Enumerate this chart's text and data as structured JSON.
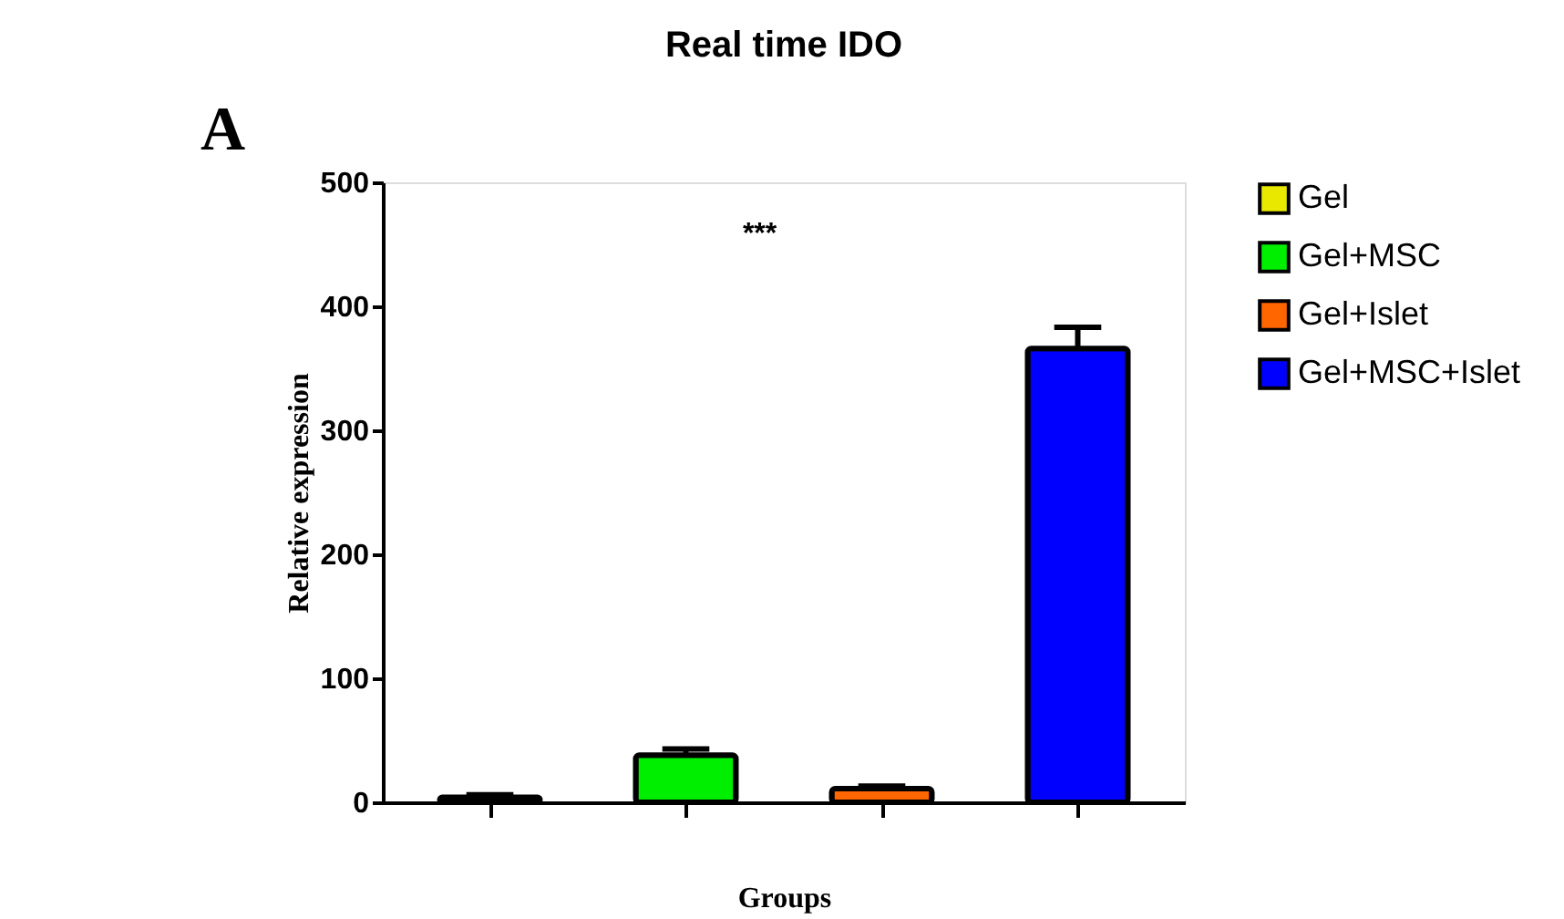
{
  "chart_data": {
    "type": "bar",
    "title": "Real time IDO",
    "xlabel": "Groups",
    "ylabel": "Relative expression",
    "categories": [
      null,
      null,
      null,
      null
    ],
    "series": [
      {
        "name": "Gel",
        "color": "#e8e800",
        "values": [
          4,
          null,
          null,
          null
        ],
        "errors": [
          2,
          null,
          null,
          null
        ]
      },
      {
        "name": "Gel+MSC",
        "color": "#00ee00",
        "values": [
          null,
          38,
          null,
          null
        ],
        "errors": [
          null,
          5,
          null,
          null
        ]
      },
      {
        "name": "Gel+Islet",
        "color": "#ff6600",
        "values": [
          null,
          null,
          11,
          null
        ],
        "errors": [
          null,
          null,
          2,
          null
        ]
      },
      {
        "name": "Gel+MSC+Islet",
        "color": "#0000ff",
        "values": [
          null,
          null,
          null,
          366
        ],
        "errors": [
          null,
          null,
          null,
          17
        ]
      }
    ],
    "ylim": [
      0,
      500
    ],
    "yticks": [
      0,
      100,
      200,
      300,
      400,
      500
    ],
    "tick_labels": "y",
    "grid": false,
    "legend": "top right",
    "annotations": [
      "A",
      "***"
    ]
  }
}
